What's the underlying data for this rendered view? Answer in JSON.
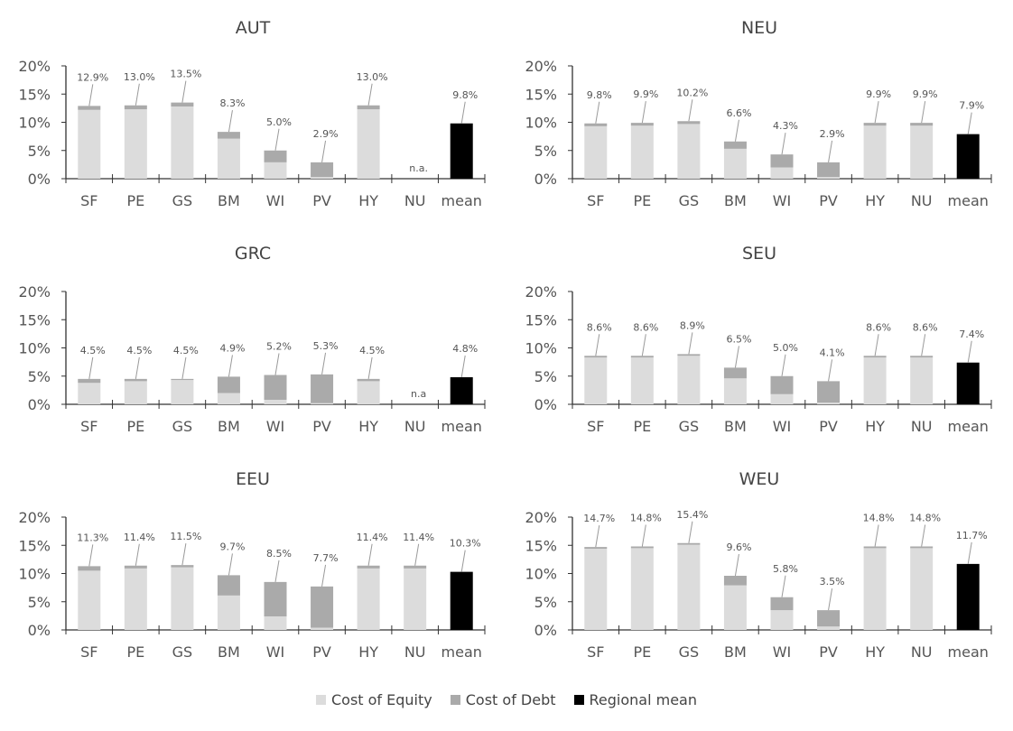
{
  "colors": {
    "equity": "#dcdcdc",
    "debt": "#aaaaaa",
    "mean": "#000000",
    "axis": "#333333"
  },
  "legend": [
    {
      "label": "Cost of Equity",
      "color_key": "equity"
    },
    {
      "label": "Cost of Debt",
      "color_key": "debt"
    },
    {
      "label": "Regional mean",
      "color_key": "mean"
    }
  ],
  "chart_data": [
    {
      "type": "bar",
      "title": "AUT",
      "categories": [
        "SF",
        "PE",
        "GS",
        "BM",
        "WI",
        "PV",
        "HY",
        "NU",
        "mean"
      ],
      "yticks": [
        "0%",
        "5%",
        "10%",
        "15%",
        "20%"
      ],
      "ylim": [
        0,
        20
      ],
      "series": [
        {
          "name": "Cost of Equity",
          "values": [
            12.2,
            12.3,
            12.8,
            7.1,
            2.9,
            0.3,
            12.3,
            0,
            0
          ]
        },
        {
          "name": "Cost of Debt",
          "values": [
            0.7,
            0.7,
            0.7,
            1.2,
            2.1,
            2.6,
            0.7,
            0,
            0
          ]
        },
        {
          "name": "Regional mean",
          "values": [
            0,
            0,
            0,
            0,
            0,
            0,
            0,
            0,
            9.8
          ]
        }
      ],
      "labels": [
        "12.9%",
        "13.0%",
        "13.5%",
        "8.3%",
        "5.0%",
        "2.9%",
        "13.0%",
        "n.a.",
        "9.8%"
      ]
    },
    {
      "type": "bar",
      "title": "NEU",
      "categories": [
        "SF",
        "PE",
        "GS",
        "BM",
        "WI",
        "PV",
        "HY",
        "NU",
        "mean"
      ],
      "yticks": [
        "0%",
        "5%",
        "10%",
        "15%",
        "20%"
      ],
      "ylim": [
        0,
        20
      ],
      "series": [
        {
          "name": "Cost of Equity",
          "values": [
            9.3,
            9.4,
            9.7,
            5.3,
            2.0,
            0.3,
            9.4,
            9.4,
            0
          ]
        },
        {
          "name": "Cost of Debt",
          "values": [
            0.5,
            0.5,
            0.5,
            1.3,
            2.3,
            2.6,
            0.5,
            0.5,
            0
          ]
        },
        {
          "name": "Regional mean",
          "values": [
            0,
            0,
            0,
            0,
            0,
            0,
            0,
            0,
            7.9
          ]
        }
      ],
      "labels": [
        "9.8%",
        "9.9%",
        "10.2%",
        "6.6%",
        "4.3%",
        "2.9%",
        "9.9%",
        "9.9%",
        "7.9%"
      ]
    },
    {
      "type": "bar",
      "title": "GRC",
      "categories": [
        "SF",
        "PE",
        "GS",
        "BM",
        "WI",
        "PV",
        "HY",
        "NU",
        "mean"
      ],
      "yticks": [
        "0%",
        "5%",
        "10%",
        "15%",
        "20%"
      ],
      "ylim": [
        0,
        20
      ],
      "series": [
        {
          "name": "Cost of Equity",
          "values": [
            3.8,
            4.1,
            4.3,
            2.0,
            0.8,
            0.2,
            4.1,
            0,
            0
          ]
        },
        {
          "name": "Cost of Debt",
          "values": [
            0.7,
            0.4,
            0.2,
            2.9,
            4.4,
            5.1,
            0.4,
            0,
            0
          ]
        },
        {
          "name": "Regional mean",
          "values": [
            0,
            0,
            0,
            0,
            0,
            0,
            0,
            0,
            4.8
          ]
        }
      ],
      "labels": [
        "4.5%",
        "4.5%",
        "4.5%",
        "4.9%",
        "5.2%",
        "5.3%",
        "4.5%",
        "n.a",
        "4.8%"
      ]
    },
    {
      "type": "bar",
      "title": "SEU",
      "categories": [
        "SF",
        "PE",
        "GS",
        "BM",
        "WI",
        "PV",
        "HY",
        "NU",
        "mean"
      ],
      "yticks": [
        "0%",
        "5%",
        "10%",
        "15%",
        "20%"
      ],
      "ylim": [
        0,
        20
      ],
      "series": [
        {
          "name": "Cost of Equity",
          "values": [
            8.3,
            8.3,
            8.6,
            4.6,
            1.8,
            0.3,
            8.3,
            8.3,
            0
          ]
        },
        {
          "name": "Cost of Debt",
          "values": [
            0.3,
            0.3,
            0.3,
            1.9,
            3.2,
            3.8,
            0.3,
            0.3,
            0
          ]
        },
        {
          "name": "Regional mean",
          "values": [
            0,
            0,
            0,
            0,
            0,
            0,
            0,
            0,
            7.4
          ]
        }
      ],
      "labels": [
        "8.6%",
        "8.6%",
        "8.9%",
        "6.5%",
        "5.0%",
        "4.1%",
        "8.6%",
        "8.6%",
        "7.4%"
      ]
    },
    {
      "type": "bar",
      "title": "EEU",
      "categories": [
        "SF",
        "PE",
        "GS",
        "BM",
        "WI",
        "PV",
        "HY",
        "NU",
        "mean"
      ],
      "yticks": [
        "0%",
        "5%",
        "10%",
        "15%",
        "20%"
      ],
      "ylim": [
        0,
        20
      ],
      "series": [
        {
          "name": "Cost of Equity",
          "values": [
            10.5,
            10.9,
            11.1,
            6.1,
            2.4,
            0.4,
            10.9,
            10.9,
            0
          ]
        },
        {
          "name": "Cost of Debt",
          "values": [
            0.8,
            0.5,
            0.4,
            3.6,
            6.1,
            7.3,
            0.5,
            0.5,
            0
          ]
        },
        {
          "name": "Regional mean",
          "values": [
            0,
            0,
            0,
            0,
            0,
            0,
            0,
            0,
            10.3
          ]
        }
      ],
      "labels": [
        "11.3%",
        "11.4%",
        "11.5%",
        "9.7%",
        "8.5%",
        "7.7%",
        "11.4%",
        "11.4%",
        "10.3%"
      ]
    },
    {
      "type": "bar",
      "title": "WEU",
      "categories": [
        "SF",
        "PE",
        "GS",
        "BM",
        "WI",
        "PV",
        "HY",
        "NU",
        "mean"
      ],
      "yticks": [
        "0%",
        "5%",
        "10%",
        "15%",
        "20%"
      ],
      "ylim": [
        0,
        20
      ],
      "series": [
        {
          "name": "Cost of Equity",
          "values": [
            14.4,
            14.5,
            15.1,
            7.9,
            3.5,
            0.6,
            14.5,
            14.5,
            0
          ]
        },
        {
          "name": "Cost of Debt",
          "values": [
            0.3,
            0.3,
            0.3,
            1.7,
            2.3,
            2.9,
            0.3,
            0.3,
            0
          ]
        },
        {
          "name": "Regional mean",
          "values": [
            0,
            0,
            0,
            0,
            0,
            0,
            0,
            0,
            11.7
          ]
        }
      ],
      "labels": [
        "14.7%",
        "14.8%",
        "15.4%",
        "9.6%",
        "5.8%",
        "3.5%",
        "14.8%",
        "14.8%",
        "11.7%"
      ]
    }
  ]
}
